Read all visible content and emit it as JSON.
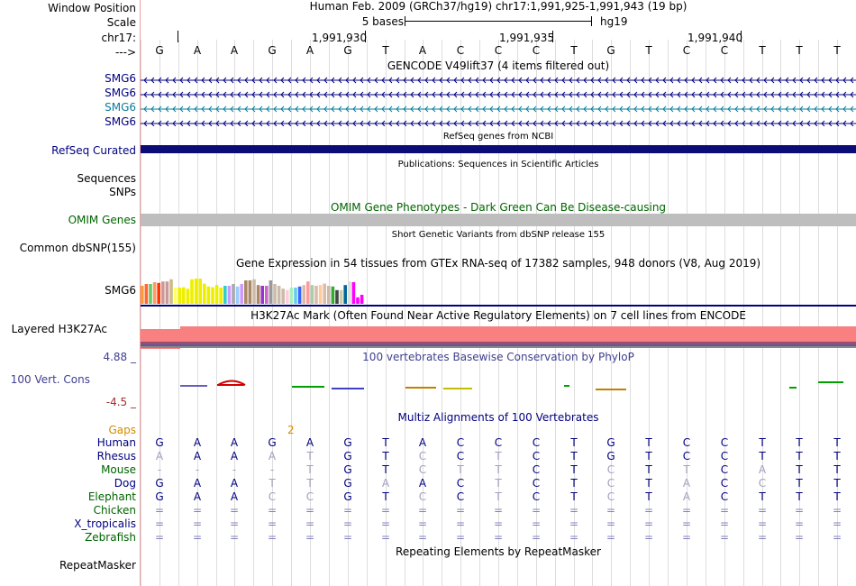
{
  "labels": {
    "window_position": "Window Position",
    "scale": "Scale",
    "chrom": "chr17:",
    "arrow": "--->",
    "smg6_1": "SMG6",
    "smg6_2": "SMG6",
    "smg6_3": "SMG6",
    "smg6_4": "SMG6",
    "refseq": "RefSeq Curated",
    "sequences": "Sequences",
    "snps": "SNPs",
    "omim": "OMIM Genes",
    "dbsnp": "Common dbSNP(155)",
    "gtex_gene": "SMG6",
    "h3k27ac": "Layered H3K27Ac",
    "phylop_max": "4.88 _",
    "cons": "100 Vert. Cons",
    "phylop_min": "-4.5 _",
    "gaps": "Gaps",
    "species": [
      "Human",
      "Rhesus",
      "Mouse",
      "Dog",
      "Elephant",
      "Chicken",
      "X_tropicalis",
      "Zebrafish"
    ],
    "repeatmasker": "RepeatMasker"
  },
  "header": {
    "position": "Human Feb. 2009 (GRCh37/hg19)   chr17:1,991,925-1,991,943 (19 bp)",
    "scale_text": "5 bases",
    "assembly": "hg19",
    "ticks": [
      "1,991,930",
      "1,991,935",
      "1,991,940"
    ]
  },
  "tracks": {
    "gencode": "GENCODE V49lift37 (4 items filtered out)",
    "refseq": "RefSeq genes from NCBI",
    "publications": "Publications: Sequences in Scientific Articles",
    "omim": "OMIM Gene Phenotypes - Dark Green Can Be Disease-causing",
    "dbsnp": "Short Genetic Variants from dbSNP release 155",
    "gtex": "Gene Expression in 54 tissues from GTEx RNA-seq of 17382 samples, 948 donors (V8, Aug 2019)",
    "h3k27ac": "H3K27Ac Mark (Often Found Near Active Regulatory Elements) on 7 cell lines from ENCODE",
    "phylop": "100 vertebrates Basewise Conservation by PhyloP",
    "multiz": "Multiz Alignments of 100 Vertebrates",
    "gaps_count": "2",
    "repeatmasker": "Repeating Elements by RepeatMasker"
  },
  "sequence": [
    "G",
    "A",
    "A",
    "G",
    "A",
    "G",
    "T",
    "A",
    "C",
    "C",
    "C",
    "T",
    "G",
    "T",
    "C",
    "C",
    "T",
    "T",
    "T"
  ],
  "alignment": {
    "Rhesus": [
      "A",
      "A",
      "A",
      "A",
      "T",
      "G",
      "T",
      "C",
      "C",
      "T",
      "C",
      "T",
      "G",
      "T",
      "C",
      "C",
      "T",
      "T",
      "T"
    ],
    "Mouse": [
      "-",
      "-",
      "-",
      "-",
      "T",
      "G",
      "T",
      "C",
      "T",
      "T",
      "C",
      "T",
      "C",
      "T",
      "T",
      "C",
      "A",
      "T",
      "T"
    ],
    "Dog": [
      "G",
      "A",
      "A",
      "T",
      "T",
      "G",
      "A",
      "A",
      "C",
      "T",
      "C",
      "T",
      "C",
      "T",
      "A",
      "C",
      "C",
      "T",
      "T"
    ],
    "Elephant": [
      "G",
      "A",
      "A",
      "C",
      "C",
      "G",
      "T",
      "C",
      "C",
      "T",
      "C",
      "T",
      "C",
      "T",
      "A",
      "C",
      "T",
      "T",
      "T"
    ],
    "Chicken": [
      "=",
      "=",
      "=",
      "=",
      "=",
      "=",
      "=",
      "=",
      "=",
      "=",
      "=",
      "=",
      "=",
      "=",
      "=",
      "=",
      "=",
      "=",
      "="
    ],
    "X_tropicalis": [
      "=",
      "=",
      "=",
      "=",
      "=",
      "=",
      "=",
      "=",
      "=",
      "=",
      "=",
      "=",
      "=",
      "=",
      "=",
      "=",
      "=",
      "=",
      "="
    ],
    "Zebrafish": [
      "=",
      "=",
      "=",
      "=",
      "=",
      "=",
      "=",
      "=",
      "=",
      "=",
      "=",
      "=",
      "=",
      "=",
      "=",
      "=",
      "=",
      "=",
      "="
    ]
  },
  "colors": {
    "gene_blue": "#000080",
    "gencode_teal": "#0a7c9c",
    "refseq": "#0c0c78",
    "omim_bar": "#bebebe",
    "omim_text": "#006400",
    "h3k27ac": "#f88080",
    "phylop_text": "#404090",
    "gaps": "#d28c00"
  },
  "gtex_bars": {
    "heights": [
      0.5,
      0.55,
      0.55,
      0.6,
      0.58,
      0.62,
      0.62,
      0.68,
      0.45,
      0.45,
      0.46,
      0.42,
      0.68,
      0.7,
      0.7,
      0.56,
      0.48,
      0.46,
      0.52,
      0.45,
      0.5,
      0.5,
      0.55,
      0.48,
      0.55,
      0.65,
      0.65,
      0.68,
      0.52,
      0.5,
      0.5,
      0.65,
      0.55,
      0.5,
      0.42,
      0.38,
      0.45,
      0.45,
      0.48,
      0.52,
      0.62,
      0.52,
      0.5,
      0.52,
      0.56,
      0.5,
      0.48,
      0.38,
      0.38,
      0.52,
      0.62,
      0.6,
      0.18,
      0.25
    ],
    "colors": [
      "#ff9933",
      "#ff6633",
      "#66cc66",
      "#ff9966",
      "#ff3300",
      "#cc9999",
      "#cc9999",
      "#ccbb88",
      "#ffff66",
      "#eeee00",
      "#eeee00",
      "#eeee00",
      "#eeee00",
      "#eeee00",
      "#eeee00",
      "#eeee00",
      "#eeee00",
      "#eeee00",
      "#eeee00",
      "#eeee00",
      "#33cccc",
      "#cc99ff",
      "#aaaaaa",
      "#99ccff",
      "#cc99ff",
      "#aa8866",
      "#aa8866",
      "#ccbbaa",
      "#aa8866",
      "#9933cc",
      "#cc66cc",
      "#999999",
      "#ccbbaa",
      "#ccbbaa",
      "#ccbbaa",
      "#ffccdd",
      "#aaeebb",
      "#66ccee",
      "#3366ff",
      "#ddbbaa",
      "#ff9999",
      "#aaccaa",
      "#ddbbaa",
      "#ffcc99",
      "#ddbbaa",
      "#ccbbaa",
      "#33aa33",
      "#444444",
      "#ccccaa",
      "#006699",
      "#dddddd",
      "#ff00ff",
      "#ff00ff",
      "#ff00ff"
    ]
  }
}
